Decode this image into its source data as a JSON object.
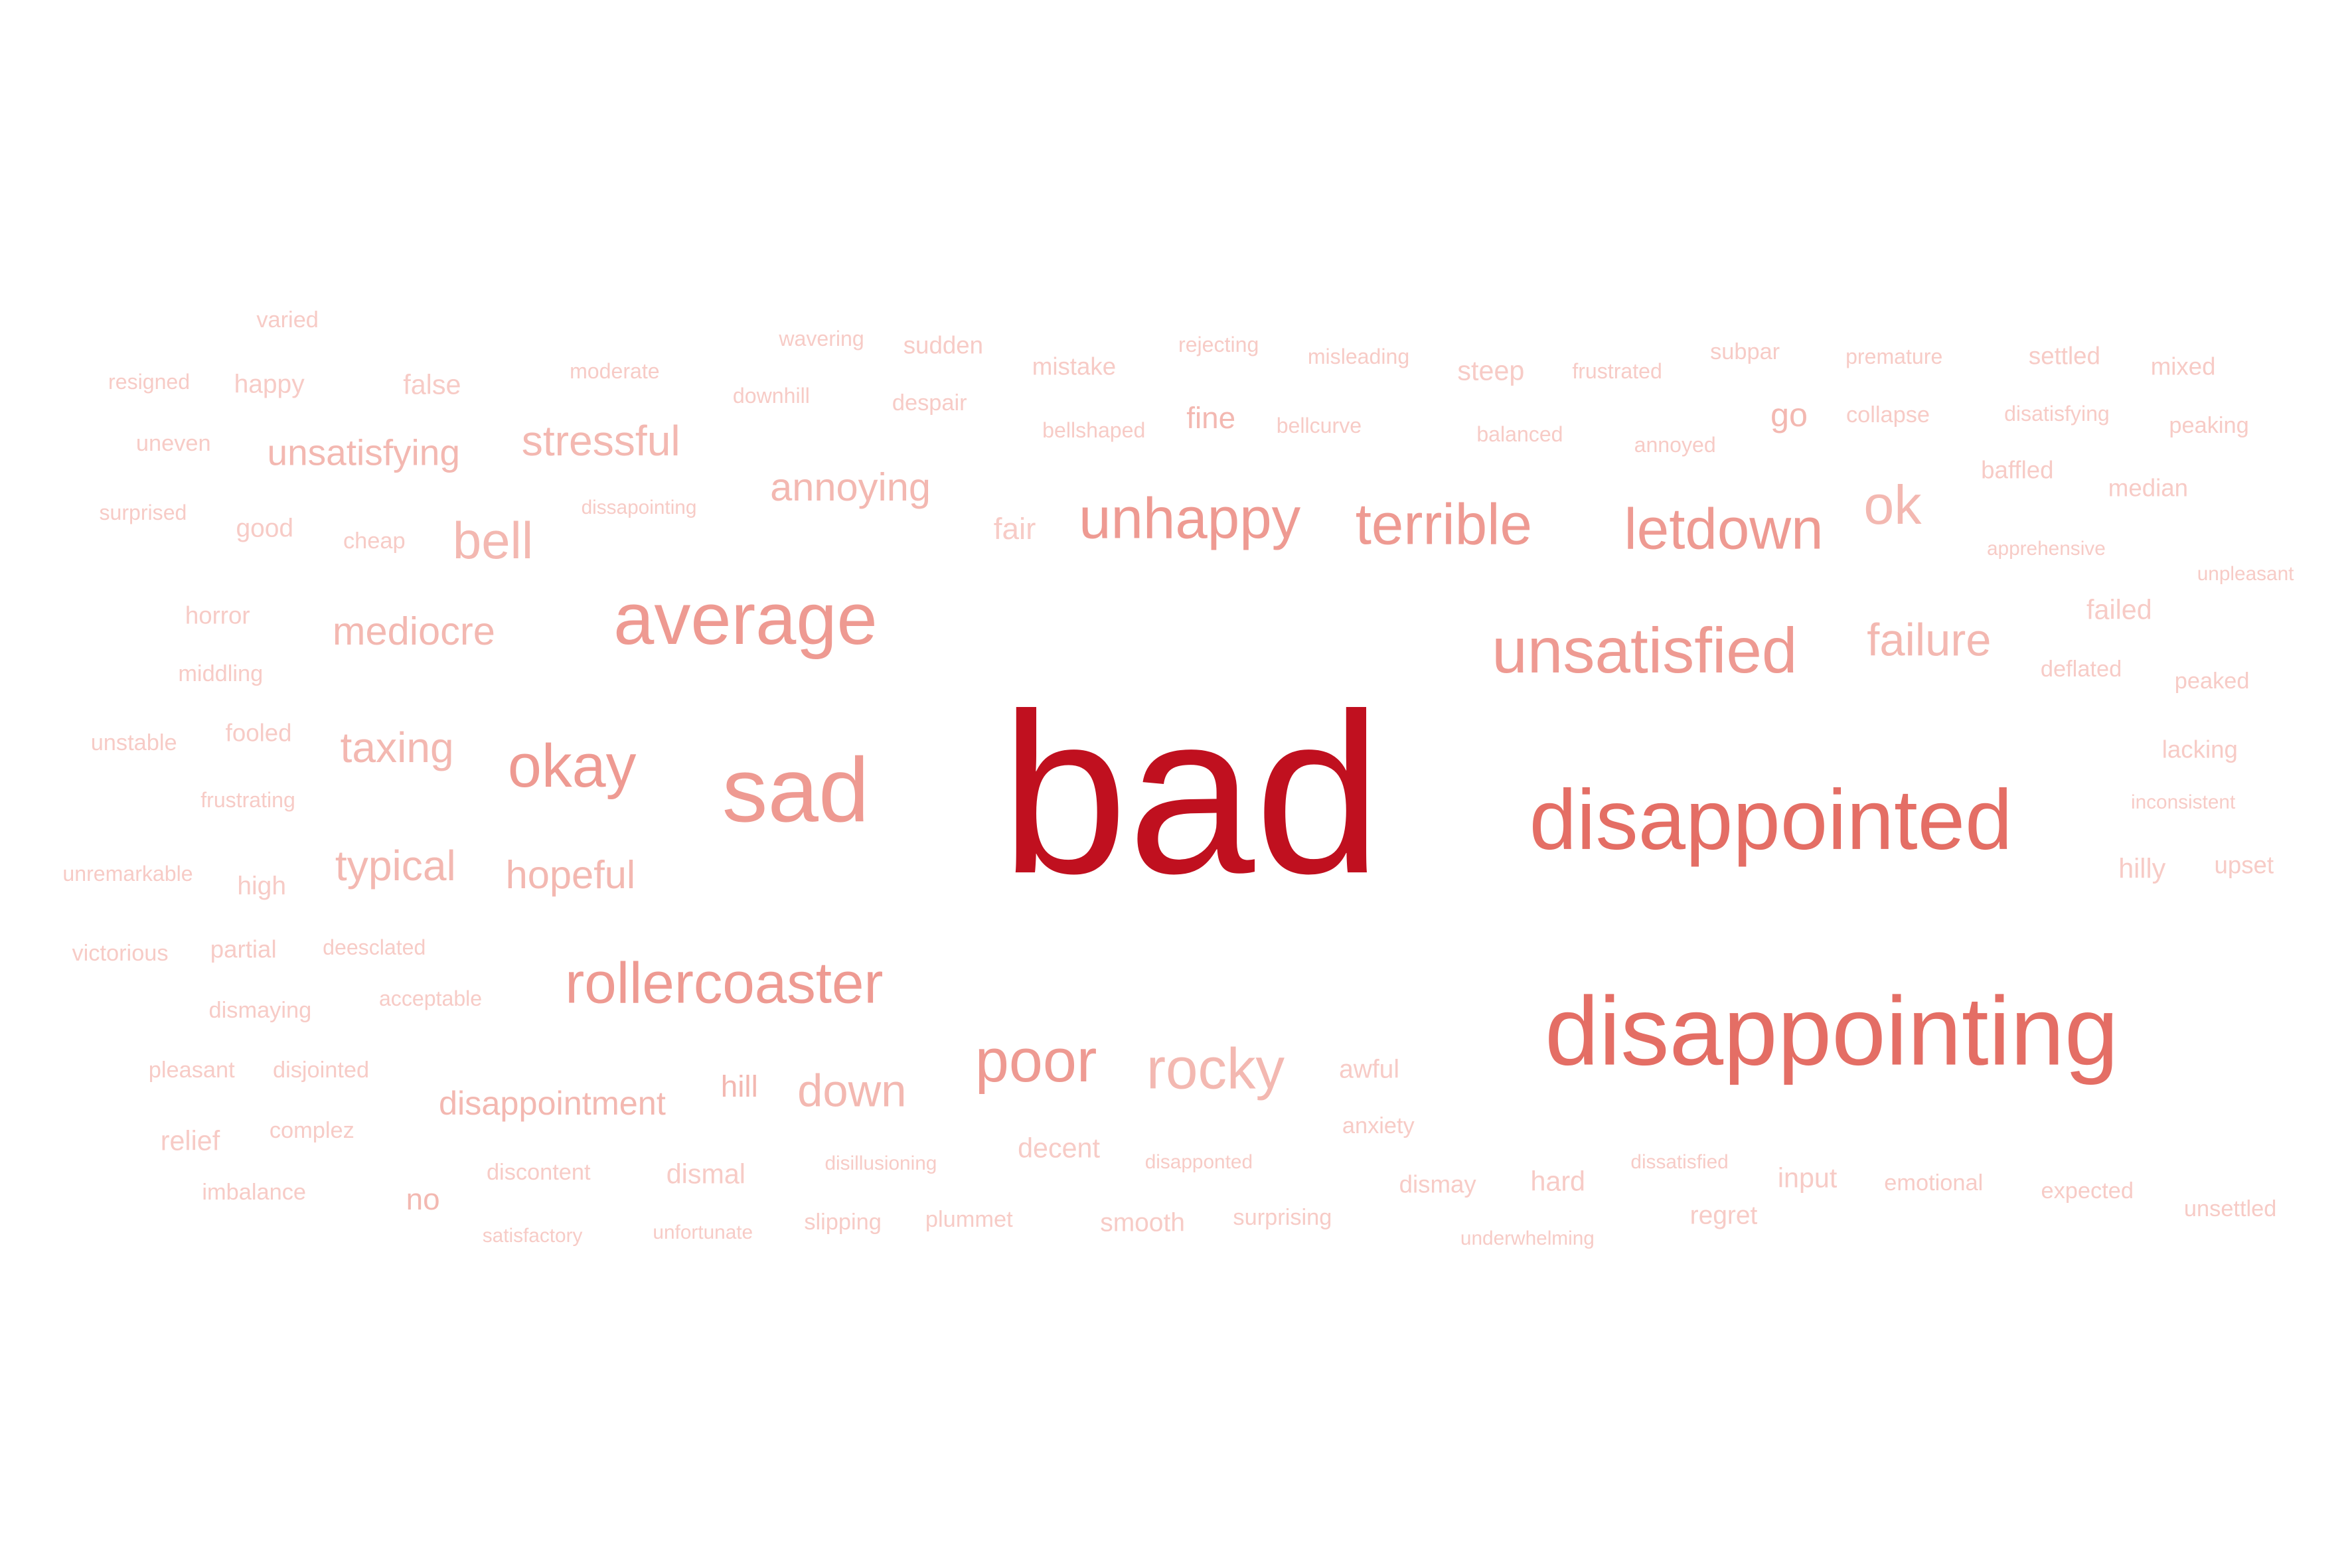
{
  "colors": {
    "strongest": "#c0101f",
    "strong": "#e46e65",
    "medium": "#ee9a92",
    "light": "#f3b8b1",
    "faint": "#f7cbc6"
  },
  "words": [
    {
      "text": "bad",
      "weight": 1.0
    },
    {
      "text": "disappointing",
      "weight": 0.6
    },
    {
      "text": "disappointed",
      "weight": 0.55
    },
    {
      "text": "sad",
      "weight": 0.48
    },
    {
      "text": "average",
      "weight": 0.45
    },
    {
      "text": "unsatisfied",
      "weight": 0.4
    },
    {
      "text": "rollercoaster",
      "weight": 0.38
    },
    {
      "text": "letdown",
      "weight": 0.37
    },
    {
      "text": "terrible",
      "weight": 0.36
    },
    {
      "text": "unhappy",
      "weight": 0.36
    },
    {
      "text": "okay",
      "weight": 0.36
    },
    {
      "text": "poor",
      "weight": 0.36
    },
    {
      "text": "rocky",
      "weight": 0.35
    },
    {
      "text": "ok",
      "weight": 0.34
    },
    {
      "text": "failure",
      "weight": 0.3
    },
    {
      "text": "bell",
      "weight": 0.3
    },
    {
      "text": "stressful",
      "weight": 0.28
    },
    {
      "text": "down",
      "weight": 0.27
    },
    {
      "text": "annoying",
      "weight": 0.27
    },
    {
      "text": "mediocre",
      "weight": 0.27
    },
    {
      "text": "typical",
      "weight": 0.27
    },
    {
      "text": "taxing",
      "weight": 0.27
    },
    {
      "text": "hopeful",
      "weight": 0.25
    },
    {
      "text": "unsatisfying",
      "weight": 0.25
    },
    {
      "text": "disappointment",
      "weight": 0.24
    },
    {
      "text": "go",
      "weight": 0.22
    },
    {
      "text": "fine",
      "weight": 0.2
    },
    {
      "text": "hill",
      "weight": 0.2
    },
    {
      "text": "no",
      "weight": 0.2
    },
    {
      "text": "fair",
      "weight": 0.19
    },
    {
      "text": "steep",
      "weight": 0.18
    },
    {
      "text": "decent",
      "weight": 0.18
    },
    {
      "text": "relief",
      "weight": 0.18
    },
    {
      "text": "hard",
      "weight": 0.18
    },
    {
      "text": "dismal",
      "weight": 0.18
    },
    {
      "text": "false",
      "weight": 0.18
    },
    {
      "text": "failed",
      "weight": 0.18
    },
    {
      "text": "hilly",
      "weight": 0.18
    },
    {
      "text": "input",
      "weight": 0.18
    },
    {
      "text": "smooth",
      "weight": 0.17
    },
    {
      "text": "happy",
      "weight": 0.17
    },
    {
      "text": "good",
      "weight": 0.17
    },
    {
      "text": "high",
      "weight": 0.17
    },
    {
      "text": "regret",
      "weight": 0.17
    },
    {
      "text": "awful",
      "weight": 0.17
    },
    {
      "text": "mistake",
      "weight": 0.16
    },
    {
      "text": "sudden",
      "weight": 0.16
    },
    {
      "text": "horror",
      "weight": 0.16
    },
    {
      "text": "fooled",
      "weight": 0.16
    },
    {
      "text": "partial",
      "weight": 0.16
    },
    {
      "text": "baffled",
      "weight": 0.16
    },
    {
      "text": "median",
      "weight": 0.16
    },
    {
      "text": "settled",
      "weight": 0.16
    },
    {
      "text": "mixed",
      "weight": 0.16
    },
    {
      "text": "upset",
      "weight": 0.16
    },
    {
      "text": "lacking",
      "weight": 0.16
    },
    {
      "text": "dismay",
      "weight": 0.16
    },
    {
      "text": "anxiety",
      "weight": 0.15
    },
    {
      "text": "varied",
      "weight": 0.15
    },
    {
      "text": "uneven",
      "weight": 0.15
    },
    {
      "text": "cheap",
      "weight": 0.15
    },
    {
      "text": "despair",
      "weight": 0.15
    },
    {
      "text": "subpar",
      "weight": 0.15
    },
    {
      "text": "collapse",
      "weight": 0.15
    },
    {
      "text": "peaking",
      "weight": 0.15
    },
    {
      "text": "deflated",
      "weight": 0.15
    },
    {
      "text": "peaked",
      "weight": 0.15
    },
    {
      "text": "expected",
      "weight": 0.15
    },
    {
      "text": "emotional",
      "weight": 0.15
    },
    {
      "text": "unsettled",
      "weight": 0.15
    },
    {
      "text": "surprising",
      "weight": 0.15
    },
    {
      "text": "slipping",
      "weight": 0.15
    },
    {
      "text": "plummet",
      "weight": 0.15
    },
    {
      "text": "discontent",
      "weight": 0.15
    },
    {
      "text": "complez",
      "weight": 0.15
    },
    {
      "text": "disjointed",
      "weight": 0.15
    },
    {
      "text": "pleasant",
      "weight": 0.15
    },
    {
      "text": "imbalance",
      "weight": 0.15
    },
    {
      "text": "acceptable",
      "weight": 0.15
    },
    {
      "text": "deesclated",
      "weight": 0.15
    },
    {
      "text": "victorious",
      "weight": 0.15
    },
    {
      "text": "dismaying",
      "weight": 0.15
    },
    {
      "text": "middling",
      "weight": 0.15
    },
    {
      "text": "unstable",
      "weight": 0.15
    },
    {
      "text": "frustrating",
      "weight": 0.14
    },
    {
      "text": "unremarkable",
      "weight": 0.14
    },
    {
      "text": "surprised",
      "weight": 0.14
    },
    {
      "text": "resigned",
      "weight": 0.14
    },
    {
      "text": "moderate",
      "weight": 0.14
    },
    {
      "text": "downhill",
      "weight": 0.14
    },
    {
      "text": "wavering",
      "weight": 0.14
    },
    {
      "text": "rejecting",
      "weight": 0.14
    },
    {
      "text": "misleading",
      "weight": 0.14
    },
    {
      "text": "frustrated",
      "weight": 0.14
    },
    {
      "text": "premature",
      "weight": 0.14
    },
    {
      "text": "disatisfying",
      "weight": 0.14
    },
    {
      "text": "balanced",
      "weight": 0.14
    },
    {
      "text": "annoyed",
      "weight": 0.14
    },
    {
      "text": "bellshaped",
      "weight": 0.14
    },
    {
      "text": "bellcurve",
      "weight": 0.14
    },
    {
      "text": "dissapointing",
      "weight": 0.14
    },
    {
      "text": "apprehensive",
      "weight": 0.14
    },
    {
      "text": "unpleasant",
      "weight": 0.14
    },
    {
      "text": "inconsistent",
      "weight": 0.14
    },
    {
      "text": "disillusioning",
      "weight": 0.14
    },
    {
      "text": "disapponted",
      "weight": 0.14
    },
    {
      "text": "dissatisfied",
      "weight": 0.14
    },
    {
      "text": "underwhelming",
      "weight": 0.14
    },
    {
      "text": "satisfactory",
      "weight": 0.14
    },
    {
      "text": "unfortunate",
      "weight": 0.14
    }
  ]
}
